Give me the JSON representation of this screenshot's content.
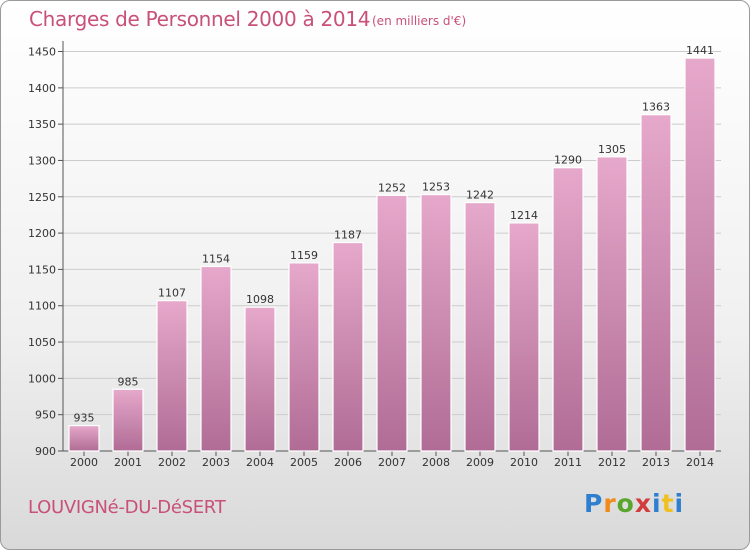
{
  "header": {
    "title": "Charges de Personnel 2000 à 2014",
    "subtitle": "(en milliers d'€)"
  },
  "footer": {
    "commune": "LOUVIGNé-DU-DéSERT",
    "logo": "Proxiti"
  },
  "colors": {
    "title": "#c8507a",
    "bar_top": "#e6a8cb",
    "bar_bottom": "#b06c95",
    "grid": "#cccccc"
  },
  "chart_data": {
    "type": "bar",
    "categories": [
      "2000",
      "2001",
      "2002",
      "2003",
      "2004",
      "2005",
      "2006",
      "2007",
      "2008",
      "2009",
      "2010",
      "2011",
      "2012",
      "2013",
      "2014"
    ],
    "values": [
      935,
      985,
      1107,
      1154,
      1098,
      1159,
      1187,
      1252,
      1253,
      1242,
      1214,
      1290,
      1305,
      1363,
      1441
    ],
    "yticks": [
      900,
      950,
      1000,
      1050,
      1100,
      1150,
      1200,
      1250,
      1300,
      1350,
      1400,
      1450
    ],
    "ylim": [
      900,
      1460
    ],
    "grid": true,
    "xlabel": "",
    "ylabel": ""
  }
}
